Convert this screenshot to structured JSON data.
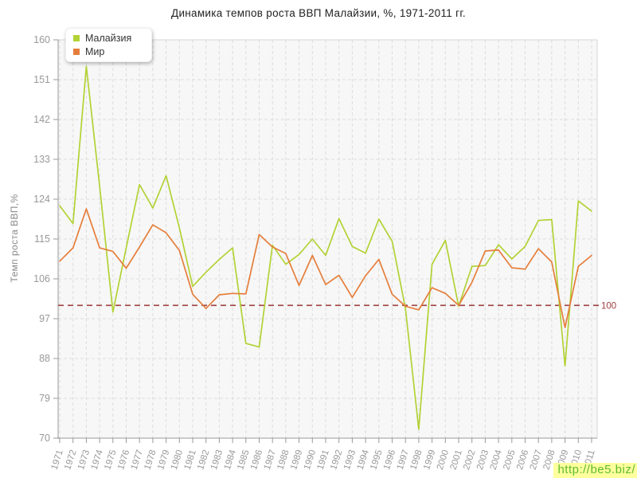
{
  "title": "Динамика темпов роста ВВП Малайзии, %, 1971-2011 гг.",
  "watermark": {
    "text": "http://be5.biz/"
  },
  "colors": {
    "grid": "#dcdcdc",
    "axis": "#999999",
    "tick_text": "#999999",
    "plot_bg": "#f7f7f7",
    "title_text": "#222222"
  },
  "chart_data": {
    "type": "line",
    "title": "Динамика темпов роста ВВП Малайзии, %, 1971-2011 гг.",
    "xlabel": "",
    "ylabel": "Темп роста ВВП,%",
    "ylim": [
      70,
      160
    ],
    "yticks": [
      70,
      79,
      88,
      97,
      106,
      115,
      124,
      133,
      142,
      151,
      160
    ],
    "grid": true,
    "legend_position": "top-left",
    "ref_line": {
      "value": 100,
      "label": "100",
      "color": "#a04040"
    },
    "categories": [
      "1971",
      "1972",
      "1973",
      "1974",
      "1975",
      "1976",
      "1977",
      "1978",
      "1979",
      "1980",
      "1981",
      "1982",
      "1983",
      "1984",
      "1985",
      "1986",
      "1987",
      "1988",
      "1989",
      "1990",
      "1991",
      "1992",
      "1993",
      "1994",
      "1995",
      "1996",
      "1997",
      "1998",
      "1999",
      "2000",
      "2001",
      "2002",
      "2003",
      "2004",
      "2005",
      "2006",
      "2007",
      "2008",
      "2009",
      "2010",
      "2011"
    ],
    "series": [
      {
        "name": "Малайзия",
        "color": "#b2d235",
        "values": [
          122.5,
          118.5,
          154,
          127,
          98.5,
          113,
          127.3,
          122,
          129.3,
          117.5,
          104.3,
          107.5,
          110.4,
          113,
          91.4,
          90.6,
          113.6,
          109.3,
          111.5,
          115,
          111.3,
          119.6,
          113.3,
          111.8,
          119.5,
          114.5,
          99.3,
          72,
          109.3,
          114.7,
          99.8,
          108.8,
          109,
          113.7,
          110.5,
          113.3,
          119.2,
          119.4,
          86.3,
          123.6,
          121.3
        ]
      },
      {
        "name": "Мир",
        "color": "#e57e3b",
        "values": [
          110,
          113,
          121.8,
          113,
          112.2,
          108.4,
          113.2,
          118.2,
          116.4,
          112.4,
          102.5,
          99.3,
          102.4,
          102.7,
          102.6,
          116,
          113.2,
          111.7,
          104.5,
          111.3,
          104.7,
          106.8,
          101.8,
          106.7,
          110.4,
          102.5,
          99.8,
          99,
          104,
          102.7,
          100,
          105.2,
          112.3,
          112.5,
          108.5,
          108.2,
          112.8,
          109.8,
          95,
          108.8,
          111.3
        ]
      }
    ]
  }
}
